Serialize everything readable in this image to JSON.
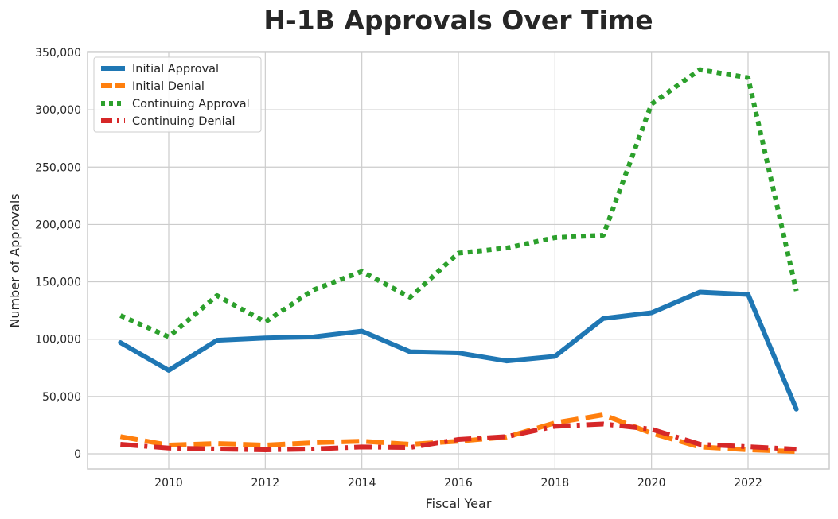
{
  "chart_data": {
    "type": "line",
    "title": "H-1B Approvals Over Time",
    "xlabel": "Fiscal Year",
    "ylabel": "Number of Approvals",
    "xlim": [
      2008.4,
      2023.7
    ],
    "ylim": [
      -13000,
      350000
    ],
    "xticks": [
      2010,
      2012,
      2014,
      2016,
      2018,
      2020,
      2022
    ],
    "yticks": [
      0,
      50000,
      100000,
      150000,
      200000,
      250000,
      300000,
      350000
    ],
    "ytick_labels": [
      "0",
      "50,000",
      "100,000",
      "150,000",
      "200,000",
      "250,000",
      "300,000",
      "350,000"
    ],
    "grid": true,
    "legend_position": "top-left",
    "x": [
      2009,
      2010,
      2011,
      2012,
      2013,
      2014,
      2015,
      2016,
      2017,
      2018,
      2019,
      2020,
      2021,
      2022,
      2023
    ],
    "series": [
      {
        "name": "Initial Approval",
        "color": "#1f77b4",
        "style": "solid",
        "values": [
          97000,
          72800,
          99000,
          101000,
          102000,
          107000,
          89000,
          88000,
          81000,
          85000,
          118000,
          123000,
          141000,
          139000,
          39000
        ]
      },
      {
        "name": "Initial Denial",
        "color": "#ff7f0e",
        "style": "dashed",
        "values": [
          15000,
          7600,
          9000,
          7600,
          9700,
          11000,
          8300,
          11000,
          14600,
          27000,
          34000,
          18000,
          6000,
          3500,
          2000
        ]
      },
      {
        "name": "Continuing Approval",
        "color": "#2ca02c",
        "style": "dotted",
        "values": [
          120600,
          102000,
          138000,
          115000,
          143000,
          159000,
          136500,
          175000,
          179500,
          188500,
          190600,
          305000,
          335000,
          328000,
          142000
        ]
      },
      {
        "name": "Continuing Denial",
        "color": "#d62728",
        "style": "dashdot",
        "values": [
          8300,
          5000,
          4200,
          3500,
          4200,
          6000,
          5500,
          12500,
          15000,
          24000,
          26000,
          21500,
          8300,
          6200,
          4000
        ]
      }
    ]
  }
}
